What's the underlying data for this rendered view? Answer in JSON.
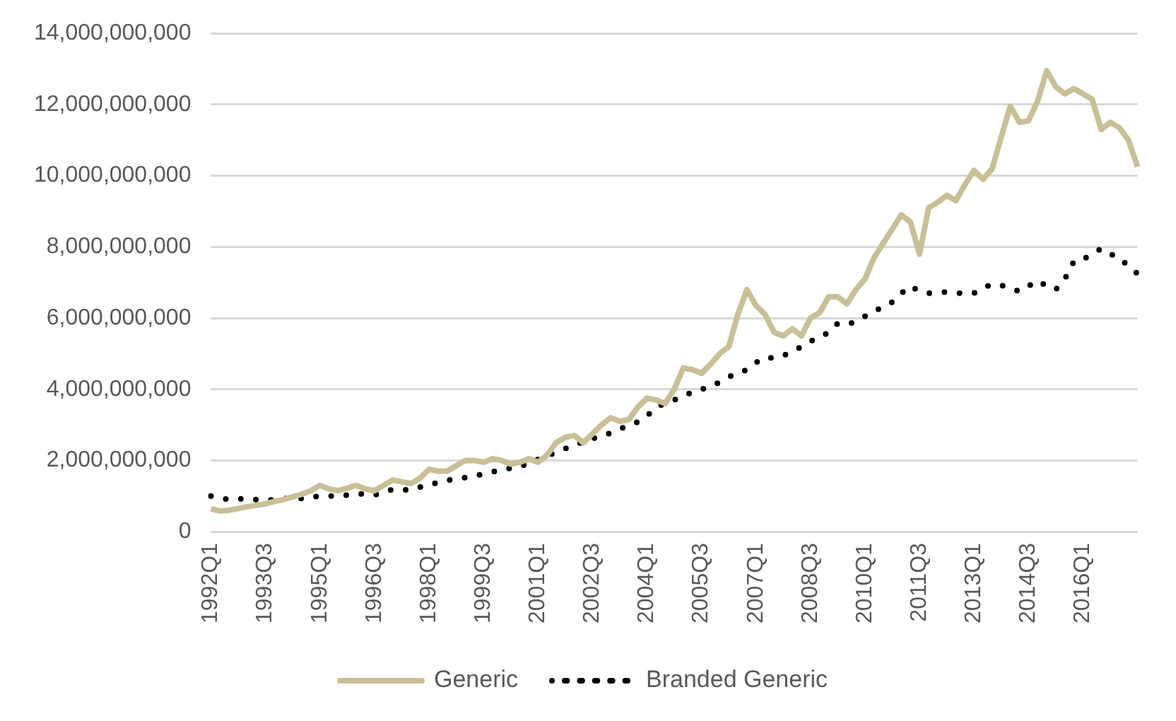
{
  "chart_data": {
    "type": "line",
    "categories": [
      "1992Q1",
      null,
      null,
      null,
      null,
      null,
      "1993Q3",
      null,
      null,
      null,
      null,
      null,
      "1995Q1",
      null,
      null,
      null,
      null,
      null,
      "1996Q3",
      null,
      null,
      null,
      null,
      null,
      "1998Q1",
      null,
      null,
      null,
      null,
      null,
      "1999Q3",
      null,
      null,
      null,
      null,
      null,
      "2001Q1",
      null,
      null,
      null,
      null,
      null,
      "2002Q3",
      null,
      null,
      null,
      null,
      null,
      "2004Q1",
      null,
      null,
      null,
      null,
      null,
      "2005Q3",
      null,
      null,
      null,
      null,
      null,
      "2007Q1",
      null,
      null,
      null,
      null,
      null,
      "2008Q3",
      null,
      null,
      null,
      null,
      null,
      "2010Q1",
      null,
      null,
      null,
      null,
      null,
      "2011Q3",
      null,
      null,
      null,
      null,
      null,
      "2013Q1",
      null,
      null,
      null,
      null,
      null,
      "2014Q3",
      null,
      null,
      null,
      null,
      null,
      "2016Q1",
      null,
      null,
      null,
      null,
      null,
      null
    ],
    "series": [
      {
        "name": "Generic",
        "color": "#c9bf97",
        "line_style": "solid",
        "values": [
          640000000,
          580000000,
          600000000,
          650000000,
          700000000,
          740000000,
          780000000,
          850000000,
          900000000,
          980000000,
          1050000000,
          1150000000,
          1300000000,
          1200000000,
          1150000000,
          1220000000,
          1300000000,
          1200000000,
          1150000000,
          1300000000,
          1450000000,
          1400000000,
          1350000000,
          1500000000,
          1750000000,
          1700000000,
          1700000000,
          1850000000,
          2000000000,
          2000000000,
          1950000000,
          2050000000,
          2000000000,
          1900000000,
          1950000000,
          2050000000,
          1950000000,
          2150000000,
          2500000000,
          2650000000,
          2700000000,
          2500000000,
          2750000000,
          3000000000,
          3200000000,
          3100000000,
          3150000000,
          3500000000,
          3750000000,
          3700000000,
          3600000000,
          4000000000,
          4600000000,
          4550000000,
          4450000000,
          4700000000,
          5000000000,
          5200000000,
          6100000000,
          6800000000,
          6350000000,
          6100000000,
          5600000000,
          5500000000,
          5700000000,
          5500000000,
          6000000000,
          6150000000,
          6600000000,
          6600000000,
          6400000000,
          6800000000,
          7100000000,
          7700000000,
          8100000000,
          8500000000,
          8900000000,
          8700000000,
          7800000000,
          9100000000,
          9250000000,
          9450000000,
          9300000000,
          9750000000,
          10150000000,
          9900000000,
          10200000000,
          11100000000,
          11950000000,
          11500000000,
          11550000000,
          12100000000,
          12950000000,
          12500000000,
          12300000000,
          12450000000,
          12300000000,
          12150000000,
          11300000000,
          11500000000,
          11350000000,
          11000000000,
          10250000000
        ]
      },
      {
        "name": "Branded Generic",
        "color": "#000000",
        "line_style": "dotted",
        "values": [
          1000000000,
          950000000,
          900000000,
          920000000,
          930000000,
          900000000,
          880000000,
          900000000,
          930000000,
          930000000,
          930000000,
          960000000,
          1000000000,
          1000000000,
          1000000000,
          1030000000,
          1070000000,
          1050000000,
          1030000000,
          1100000000,
          1190000000,
          1180000000,
          1170000000,
          1250000000,
          1320000000,
          1380000000,
          1440000000,
          1480000000,
          1520000000,
          1570000000,
          1620000000,
          1680000000,
          1740000000,
          1780000000,
          1820000000,
          1930000000,
          2030000000,
          2130000000,
          2230000000,
          2330000000,
          2440000000,
          2520000000,
          2610000000,
          2690000000,
          2770000000,
          2880000000,
          3000000000,
          3080000000,
          3250000000,
          3500000000,
          3600000000,
          3700000000,
          3800000000,
          3930000000,
          4000000000,
          4080000000,
          4200000000,
          4350000000,
          4450000000,
          4550000000,
          4750000000,
          4900000000,
          4870000000,
          4950000000,
          5050000000,
          5200000000,
          5350000000,
          5450000000,
          5600000000,
          5850000000,
          5820000000,
          5900000000,
          6050000000,
          6200000000,
          6300000000,
          6450000000,
          6700000000,
          6900000000,
          6750000000,
          6700000000,
          6730000000,
          6730000000,
          6700000000,
          6700000000,
          6700000000,
          6850000000,
          6950000000,
          6920000000,
          6850000000,
          6750000000,
          6900000000,
          7050000000,
          6900000000,
          6800000000,
          7100000000,
          7600000000,
          7650000000,
          7800000000,
          7950000000,
          7800000000,
          7700000000,
          7450000000,
          7250000000
        ]
      }
    ],
    "ylim": [
      0,
      14000000000
    ],
    "yticks": [
      {
        "value": 0,
        "label": "0"
      },
      {
        "value": 2000000000,
        "label": "2,000,000,000"
      },
      {
        "value": 4000000000,
        "label": "4,000,000,000"
      },
      {
        "value": 6000000000,
        "label": "6,000,000,000"
      },
      {
        "value": 8000000000,
        "label": "8,000,000,000"
      },
      {
        "value": 10000000000,
        "label": "10,000,000,000"
      },
      {
        "value": 12000000000,
        "label": "12,000,000,000"
      },
      {
        "value": 14000000000,
        "label": "14,000,000,000"
      }
    ],
    "grid": "y",
    "legend": "bottom"
  }
}
